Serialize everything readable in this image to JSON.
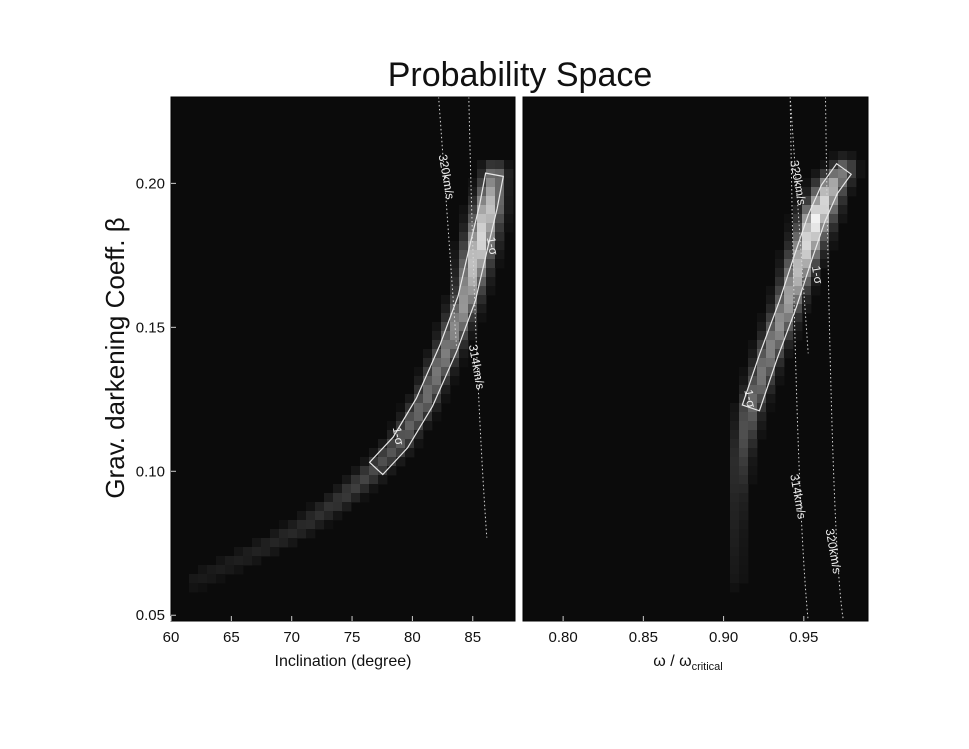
{
  "figure": {
    "title": "Probability Space",
    "ylabel": "Grav. darkening Coeff. β"
  },
  "chart_data": [
    {
      "type": "heatmap",
      "panel": "left",
      "xlabel": "Inclination (degree)",
      "xlim": [
        60,
        88.5
      ],
      "ylim": [
        0.048,
        0.23
      ],
      "xticks": [
        "60",
        "65",
        "70",
        "75",
        "80",
        "85"
      ],
      "xtick_values": [
        60,
        65,
        70,
        75,
        80,
        85
      ],
      "yticks": [
        "0.05",
        "0.10",
        "0.15",
        "0.20"
      ],
      "ytick_values": [
        0.05,
        0.1,
        0.15,
        0.2
      ],
      "colormap": "gray",
      "ridge": [
        {
          "x": 62,
          "y": 0.062,
          "p": 0.06
        },
        {
          "x": 65,
          "y": 0.068,
          "p": 0.08
        },
        {
          "x": 68,
          "y": 0.074,
          "p": 0.1
        },
        {
          "x": 71,
          "y": 0.081,
          "p": 0.13
        },
        {
          "x": 74,
          "y": 0.09,
          "p": 0.18
        },
        {
          "x": 77,
          "y": 0.101,
          "p": 0.26
        },
        {
          "x": 79,
          "y": 0.11,
          "p": 0.33
        },
        {
          "x": 81,
          "y": 0.124,
          "p": 0.4
        },
        {
          "x": 83,
          "y": 0.143,
          "p": 0.48
        },
        {
          "x": 84.5,
          "y": 0.16,
          "p": 0.6
        },
        {
          "x": 85.5,
          "y": 0.178,
          "p": 0.85
        },
        {
          "x": 86.3,
          "y": 0.192,
          "p": 0.78
        },
        {
          "x": 86.8,
          "y": 0.203,
          "p": 0.45
        }
      ],
      "contours": [
        {
          "label": "1-σ",
          "x": 78.5,
          "y": 0.112
        },
        {
          "label": "1-σ",
          "x": 86.3,
          "y": 0.178
        },
        {
          "label": "320km/s",
          "x": 82.5,
          "y": 0.202
        },
        {
          "label": "314km/s",
          "x": 85,
          "y": 0.136
        }
      ]
    },
    {
      "type": "heatmap",
      "panel": "right",
      "xlabel": "ω / ω",
      "xlabel_sub": "critical",
      "xlim": [
        0.775,
        0.99
      ],
      "ylim": [
        0.048,
        0.23
      ],
      "xticks": [
        "0.80",
        "0.85",
        "0.90",
        "0.95"
      ],
      "xtick_values": [
        0.8,
        0.85,
        0.9,
        0.95
      ],
      "colormap": "gray",
      "ridge": [
        {
          "x": 0.908,
          "y": 0.062,
          "p": 0.05
        },
        {
          "x": 0.908,
          "y": 0.075,
          "p": 0.08
        },
        {
          "x": 0.909,
          "y": 0.09,
          "p": 0.12
        },
        {
          "x": 0.911,
          "y": 0.105,
          "p": 0.22
        },
        {
          "x": 0.917,
          "y": 0.122,
          "p": 0.38
        },
        {
          "x": 0.928,
          "y": 0.14,
          "p": 0.48
        },
        {
          "x": 0.94,
          "y": 0.158,
          "p": 0.6
        },
        {
          "x": 0.95,
          "y": 0.175,
          "p": 0.8
        },
        {
          "x": 0.958,
          "y": 0.188,
          "p": 0.95
        },
        {
          "x": 0.966,
          "y": 0.198,
          "p": 0.75
        },
        {
          "x": 0.975,
          "y": 0.205,
          "p": 0.4
        }
      ],
      "contours": [
        {
          "label": "1-σ",
          "x": 0.914,
          "y": 0.125
        },
        {
          "label": "1-σ",
          "x": 0.956,
          "y": 0.168
        },
        {
          "label": "320km/s",
          "x": 0.944,
          "y": 0.2
        },
        {
          "label": "314km/s",
          "x": 0.944,
          "y": 0.091
        },
        {
          "label": "320km/s",
          "x": 0.966,
          "y": 0.072
        }
      ]
    }
  ]
}
